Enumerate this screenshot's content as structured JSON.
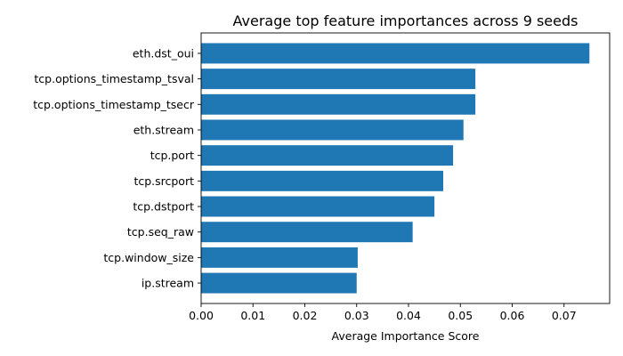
{
  "chart_data": {
    "type": "bar",
    "orientation": "horizontal",
    "title": "Average top feature importances across 9 seeds",
    "xlabel": "Average Importance Score",
    "ylabel": "",
    "categories": [
      "eth.dst_oui",
      "tcp.options_timestamp_tsval",
      "tcp.options_timestamp_tsecr",
      "eth.stream",
      "tcp.port",
      "tcp.srcport",
      "tcp.dstport",
      "tcp.seq_raw",
      "tcp.window_size",
      "ip.stream"
    ],
    "values": [
      0.0749,
      0.0529,
      0.0529,
      0.0506,
      0.0486,
      0.0467,
      0.045,
      0.0408,
      0.0302,
      0.03
    ],
    "xlim": [
      0,
      0.0788
    ],
    "xticks": [
      0.0,
      0.01,
      0.02,
      0.03,
      0.04,
      0.05,
      0.06,
      0.07
    ],
    "xtick_labels": [
      "0.00",
      "0.01",
      "0.02",
      "0.03",
      "0.04",
      "0.05",
      "0.06",
      "0.07"
    ],
    "bar_color": "#1f77b4",
    "grid": false,
    "legend": "none"
  }
}
